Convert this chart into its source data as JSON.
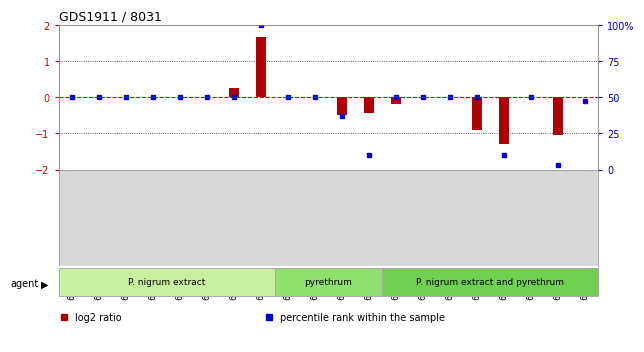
{
  "title": "GDS1911 / 8031",
  "samples": [
    "GSM66824",
    "GSM66825",
    "GSM66826",
    "GSM66827",
    "GSM66828",
    "GSM66829",
    "GSM66830",
    "GSM66831",
    "GSM66840",
    "GSM66841",
    "GSM66842",
    "GSM66843",
    "GSM66832",
    "GSM66833",
    "GSM66834",
    "GSM66835",
    "GSM66836",
    "GSM66837",
    "GSM66838",
    "GSM66839"
  ],
  "log2_ratio": [
    0,
    0,
    0,
    0,
    0,
    0,
    0.25,
    1.65,
    0,
    0,
    -0.5,
    -0.45,
    -0.18,
    0,
    0,
    -0.9,
    -1.3,
    0,
    -1.05,
    0
  ],
  "percentile": [
    50,
    50,
    50,
    50,
    50,
    50,
    50,
    100,
    50,
    50,
    37,
    10,
    50,
    50,
    50,
    50,
    10,
    50,
    3,
    47
  ],
  "groups": [
    {
      "label": "P. nigrum extract",
      "start": 0,
      "end": 8,
      "color": "#c8f0a0"
    },
    {
      "label": "pyrethrum",
      "start": 8,
      "end": 12,
      "color": "#90e070"
    },
    {
      "label": "P. nigrum extract and pyrethrum",
      "start": 12,
      "end": 20,
      "color": "#70d050"
    }
  ],
  "ylim_left": [
    -2,
    2
  ],
  "ylim_right": [
    0,
    100
  ],
  "yticks_left": [
    -2,
    -1,
    0,
    1,
    2
  ],
  "yticks_right": [
    0,
    25,
    50,
    75,
    100
  ],
  "ytick_labels_right": [
    "0",
    "25",
    "50",
    "75",
    "100%"
  ],
  "bar_color": "#aa0000",
  "dot_color": "#0000cc",
  "zero_line_color": "#cc0000",
  "grid_line_color": "#333333",
  "legend_items": [
    {
      "label": "log2 ratio",
      "color": "#aa0000"
    },
    {
      "label": "percentile rank within the sample",
      "color": "#0000cc"
    }
  ]
}
